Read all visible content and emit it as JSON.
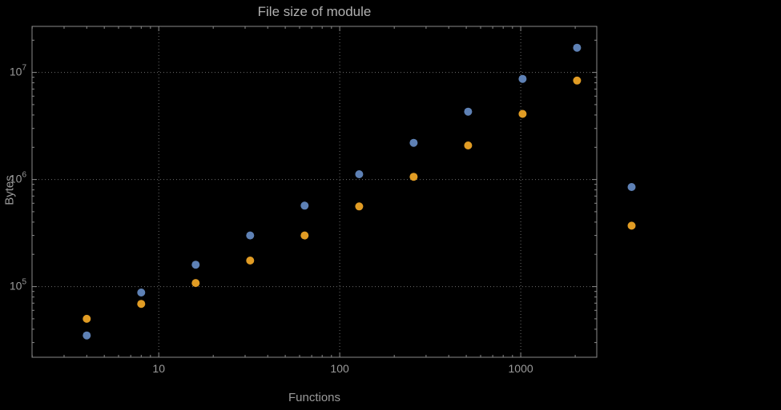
{
  "colors": {
    "background": "#000000",
    "frame": "#8a8a8a",
    "grid": "#6b6b6b",
    "text": "#9a9a9a",
    "title": "#b0b0b0",
    "series_blue": "#5e81b5",
    "series_orange": "#e19c24"
  },
  "chart_data": {
    "type": "scatter",
    "title": "File size of module",
    "xlabel": "Functions",
    "ylabel": "Bytes",
    "x_scale": "log",
    "y_scale": "log",
    "grid": true,
    "legend": false,
    "marker_radius": 5,
    "x": [
      4,
      8,
      16,
      32,
      64,
      128,
      256,
      512,
      1024,
      2048,
      4096
    ],
    "series": [
      {
        "name": "blue",
        "color": "#5e81b5",
        "values": [
          35000,
          88000,
          160000,
          300000,
          570000,
          1120000,
          2200000,
          4300000,
          8700000,
          17000000,
          850000
        ]
      },
      {
        "name": "orange",
        "color": "#e19c24",
        "values": [
          50000,
          69000,
          108000,
          175000,
          300000,
          560000,
          1060000,
          2080000,
          4100000,
          8400000,
          370000
        ]
      }
    ],
    "x_ticks": [
      10,
      100,
      1000
    ],
    "x_tick_labels": [
      "10",
      "100",
      "1000"
    ],
    "y_tick_exponents": [
      5,
      6,
      7
    ],
    "y_tick_base": "10",
    "xlim_log10": [
      0.3,
      3.42
    ],
    "ylim_log10": [
      4.34,
      7.43
    ]
  }
}
